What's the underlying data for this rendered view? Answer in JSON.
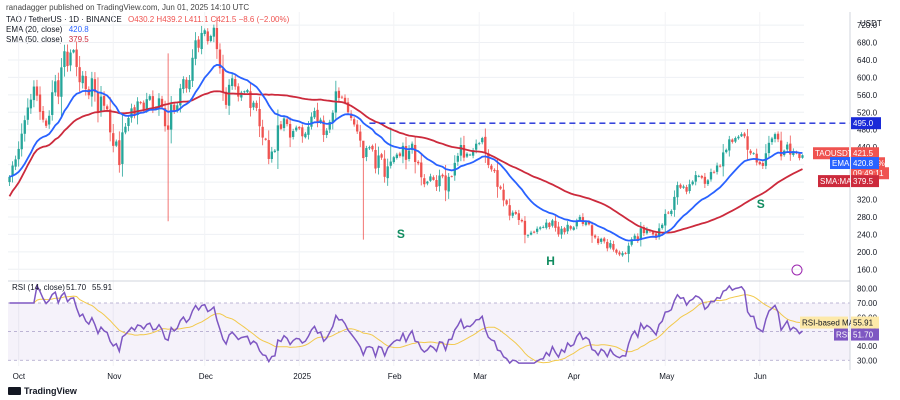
{
  "header": {
    "published": "ranadagger published on TradingView.com, Jun 01, 2025 14:10 UTC",
    "symbol": "TAO / TetherUS · 1D · BINANCE",
    "ohlc": "O430.2 H439.2 L411.1 C421.5 −8.6 (−2.00%)",
    "ema": "EMA (20, close)",
    "ema_value": "420.8",
    "sma": "SMA (50, close)",
    "sma_value": "379.5",
    "currency": "USDT"
  },
  "colors": {
    "up": "#26a69a",
    "down": "#ef5350",
    "ema": "#2962ff",
    "sma": "#cc2a3c",
    "rsi": "#7e57c2",
    "rsi_ma": "#f2c94c",
    "resistance": "#1a2ad8",
    "pattern": "#0f8b5f"
  },
  "chart_data": [
    {
      "type": "candlestick",
      "y_ticks": [
        160,
        200,
        240,
        280,
        320,
        360,
        400,
        440,
        480,
        520,
        560,
        600,
        640,
        680,
        720
      ],
      "ylim": [
        140,
        750
      ],
      "x_ticks": [
        "Oct",
        "Nov",
        "Dec",
        "2025",
        "Feb",
        "Mar",
        "Apr",
        "May",
        "Jun"
      ],
      "resistance": 495.0,
      "tags": {
        "resistance": "495.0",
        "last_symbol": "TAOUSDT",
        "last_price": "421.5",
        "last_change": "−23.64%",
        "countdown": "09:49:11",
        "ema_tag": "EMA",
        "ema_val": "420.8",
        "sma_tag": "SMA:MA",
        "sma_val": "379.5"
      },
      "pattern_labels": [
        {
          "text": "S",
          "day": 127,
          "price": 232
        },
        {
          "text": "H",
          "day": 176,
          "price": 170
        },
        {
          "text": "S",
          "day": 245,
          "price": 300
        }
      ],
      "closes": [
        372,
        398,
        412,
        436,
        471,
        502,
        531,
        549,
        579,
        558,
        521,
        503,
        489,
        512,
        566,
        591,
        556,
        623,
        660,
        626,
        657,
        663,
        624,
        589,
        604,
        573,
        559,
        598,
        566,
        519,
        556,
        535,
        527,
        474,
        443,
        453,
        399,
        474,
        487,
        507,
        529,
        514,
        545,
        541,
        526,
        550,
        557,
        528,
        530,
        552,
        532,
        488,
        480,
        538,
        522,
        536,
        575,
        596,
        575,
        594,
        645,
        685,
        668,
        702,
        708,
        683,
        695,
        714,
        665,
        621,
        567,
        537,
        583,
        598,
        579,
        556,
        565,
        568,
        571,
        530,
        542,
        530,
        488,
        462,
        457,
        413,
        430,
        432,
        490,
        482,
        506,
        493,
        462,
        477,
        485,
        483,
        465,
        471,
        487,
        510,
        523,
        499,
        503,
        468,
        478,
        498,
        519,
        568,
        553,
        555,
        542,
        520,
        507,
        492,
        476,
        455,
        415,
        438,
        440,
        435,
        391,
        421,
        416,
        372,
        396,
        407,
        417,
        423,
        420,
        443,
        411,
        432,
        448,
        406,
        403,
        371,
        355,
        361,
        373,
        365,
        349,
        375,
        373,
        341,
        372,
        373,
        404,
        420,
        445,
        416,
        425,
        423,
        433,
        448,
        449,
        461,
        426,
        399,
        389,
        385,
        349,
        345,
        318,
        309,
        283,
        290,
        287,
        273,
        270,
        239,
        238,
        244,
        244,
        253,
        256,
        257,
        267,
        257,
        272,
        255,
        240,
        253,
        245,
        262,
        253,
        256,
        272,
        280,
        264,
        268,
        263,
        237,
        233,
        220,
        230,
        224,
        208,
        220,
        205,
        198,
        194,
        197,
        196,
        214,
        229,
        237,
        225,
        254,
        243,
        251,
        247,
        240,
        232,
        254,
        262,
        287,
        289,
        294,
        326,
        353,
        347,
        350,
        338,
        355,
        361,
        376,
        374,
        370,
        356,
        364,
        383,
        382,
        398,
        397,
        428,
        434,
        458,
        452,
        461,
        464,
        470,
        465,
        434,
        426,
        426,
        405,
        401,
        397,
        426,
        450,
        460,
        470,
        458,
        419,
        432,
        446,
        423,
        431,
        426,
        415,
        421.5
      ],
      "first_open": 360,
      "highs_extra": {
        "52": 655,
        "116": 415,
        "125": 485
      },
      "lows_extra": {
        "52": 270,
        "116": 228,
        "203": 176,
        "247": 390
      }
    },
    {
      "type": "line",
      "title": "RSI (14, close)",
      "rsi_value": "51.70",
      "rsi_ma_value": "55.91",
      "rsi_ma_label": "RSI-based MA",
      "rsi_tag": "RSI",
      "y_ticks": [
        30,
        40,
        50,
        60,
        70,
        80
      ],
      "ylim": [
        26,
        84
      ],
      "band": [
        30,
        70
      ]
    }
  ],
  "footer": {
    "brand": "TradingView"
  }
}
